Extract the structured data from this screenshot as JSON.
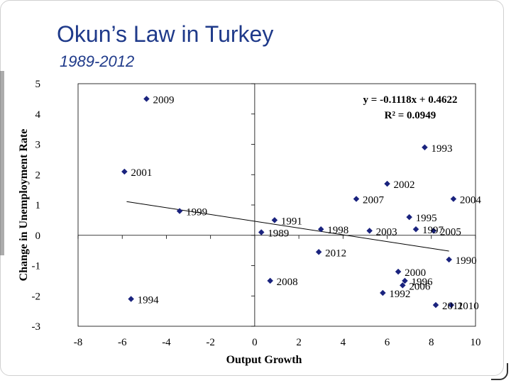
{
  "slide": {
    "title": "Okun’s Law in Turkey",
    "subtitle": "1989-2012"
  },
  "chart_data": {
    "type": "scatter",
    "xlabel": "Output Growth",
    "ylabel": "Change in Unemployment Rate",
    "xlim": [
      -8,
      10
    ],
    "ylim": [
      -3,
      5
    ],
    "xticks": [
      -8,
      -6,
      -4,
      -2,
      0,
      2,
      4,
      6,
      8,
      10
    ],
    "yticks": [
      -3,
      -2,
      -1,
      0,
      1,
      2,
      3,
      4,
      5
    ],
    "marker_color": "#1a237e",
    "grid": false,
    "trendline": {
      "slope": -0.1118,
      "intercept": 0.4622,
      "x_range": [
        -5.8,
        8.8
      ],
      "equation_label": "y = -0.1118x + 0.4622",
      "r2_label": "R² = 0.0949"
    },
    "points": [
      {
        "year": "1989",
        "x": 0.3,
        "y": 0.1
      },
      {
        "year": "1990",
        "x": 8.8,
        "y": -0.8
      },
      {
        "year": "1991",
        "x": 0.9,
        "y": 0.5
      },
      {
        "year": "1992",
        "x": 5.8,
        "y": -1.9
      },
      {
        "year": "1993",
        "x": 7.7,
        "y": 2.9
      },
      {
        "year": "1994",
        "x": -5.6,
        "y": -2.1
      },
      {
        "year": "1995",
        "x": 7.0,
        "y": 0.6
      },
      {
        "year": "1996",
        "x": 6.8,
        "y": -1.5
      },
      {
        "year": "1997",
        "x": 7.3,
        "y": 0.2
      },
      {
        "year": "1998",
        "x": 3.0,
        "y": 0.2
      },
      {
        "year": "1999",
        "x": -3.4,
        "y": 0.8
      },
      {
        "year": "2000",
        "x": 6.5,
        "y": -1.2
      },
      {
        "year": "2001",
        "x": -5.9,
        "y": 2.1
      },
      {
        "year": "2002",
        "x": 6.0,
        "y": 1.7
      },
      {
        "year": "2003",
        "x": 5.2,
        "y": 0.15
      },
      {
        "year": "2004",
        "x": 9.0,
        "y": 1.2
      },
      {
        "year": "2005",
        "x": 8.1,
        "y": 0.15
      },
      {
        "year": "2006",
        "x": 6.7,
        "y": -1.65
      },
      {
        "year": "2007",
        "x": 4.6,
        "y": 1.2
      },
      {
        "year": "2008",
        "x": 0.7,
        "y": -1.5
      },
      {
        "year": "2009",
        "x": -4.9,
        "y": 4.5
      },
      {
        "year": "2010",
        "x": 8.9,
        "y": -2.3
      },
      {
        "year": "2011",
        "x": 8.2,
        "y": -2.3
      },
      {
        "year": "2012",
        "x": 2.9,
        "y": -0.55
      }
    ]
  }
}
